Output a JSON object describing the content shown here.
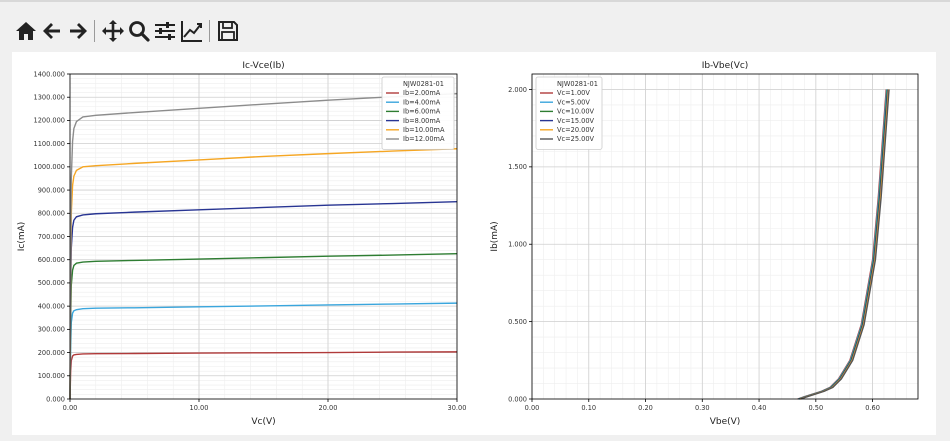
{
  "toolbar": {
    "buttons": [
      {
        "name": "home-icon"
      },
      {
        "name": "back-icon"
      },
      {
        "name": "forward-icon"
      },
      {
        "name": "pan-icon"
      },
      {
        "name": "zoom-icon"
      },
      {
        "name": "configure-subplots-icon"
      },
      {
        "name": "edit-axes-icon"
      },
      {
        "name": "save-icon"
      }
    ]
  },
  "chart_data": [
    {
      "type": "line",
      "title": "Ic-Vce(Ib)",
      "xlabel": "Vc(V)",
      "ylabel": "Ic(mA)",
      "xlim": [
        0,
        30
      ],
      "ylim": [
        0,
        1400
      ],
      "x_ticks": [
        0,
        10,
        20,
        30
      ],
      "x_tick_labels": [
        "0.00",
        "10.00",
        "20.00",
        "30.00"
      ],
      "y_ticks": [
        0,
        100,
        200,
        300,
        400,
        500,
        600,
        700,
        800,
        900,
        1000,
        1100,
        1200,
        1300,
        1400
      ],
      "y_tick_labels": [
        "0.000",
        "100.000",
        "200.000",
        "300.000",
        "400.000",
        "500.000",
        "600.000",
        "700.000",
        "800.000",
        "900.000",
        "1000.000",
        "1100.000",
        "1200.000",
        "1300.000",
        "1400.000"
      ],
      "grid": true,
      "legend": {
        "title": "NJW0281-01",
        "placement": "top-right"
      },
      "series": [
        {
          "name": "Ib=2.00mA",
          "color": "#b03a3a",
          "x": [
            0,
            0.05,
            0.1,
            0.2,
            0.3,
            0.5,
            1,
            2,
            5,
            10,
            15,
            20,
            25,
            30
          ],
          "y": [
            0,
            120,
            165,
            185,
            190,
            192,
            194,
            195,
            196,
            198,
            199,
            200,
            202,
            203
          ]
        },
        {
          "name": "Ib=4.00mA",
          "color": "#3aa6dd",
          "x": [
            0,
            0.05,
            0.1,
            0.2,
            0.3,
            0.5,
            1,
            2,
            5,
            10,
            15,
            20,
            25,
            30
          ],
          "y": [
            0,
            240,
            330,
            370,
            380,
            385,
            389,
            391,
            393,
            397,
            401,
            405,
            409,
            413
          ]
        },
        {
          "name": "Ib=6.00mA",
          "color": "#2e7d32",
          "x": [
            0,
            0.05,
            0.1,
            0.2,
            0.3,
            0.5,
            1,
            2,
            5,
            10,
            15,
            20,
            25,
            30
          ],
          "y": [
            0,
            350,
            490,
            555,
            575,
            585,
            590,
            593,
            597,
            603,
            609,
            615,
            620,
            626
          ]
        },
        {
          "name": "Ib=8.00mA",
          "color": "#283593",
          "x": [
            0,
            0.05,
            0.1,
            0.2,
            0.3,
            0.5,
            1,
            2,
            5,
            10,
            15,
            20,
            25,
            30
          ],
          "y": [
            0,
            460,
            650,
            740,
            770,
            785,
            793,
            798,
            805,
            815,
            825,
            835,
            842,
            850
          ]
        },
        {
          "name": "Ib=10.00mA",
          "color": "#f5a623",
          "x": [
            0,
            0.05,
            0.1,
            0.2,
            0.3,
            0.5,
            1,
            2,
            5,
            10,
            15,
            20,
            25,
            30
          ],
          "y": [
            0,
            560,
            800,
            920,
            960,
            985,
            1000,
            1005,
            1015,
            1030,
            1045,
            1057,
            1068,
            1078
          ]
        },
        {
          "name": "Ib=12.00mA",
          "color": "#8c8c8c",
          "x": [
            0,
            0.05,
            0.1,
            0.2,
            0.3,
            0.5,
            1,
            2,
            5,
            10,
            15,
            20,
            25,
            30
          ],
          "y": [
            0,
            650,
            950,
            1110,
            1165,
            1195,
            1215,
            1222,
            1234,
            1252,
            1270,
            1287,
            1302,
            1315
          ]
        }
      ]
    },
    {
      "type": "line",
      "title": "Ib-Vbe(Vc)",
      "xlabel": "Vbe(V)",
      "ylabel": "Ib(mA)",
      "xlim": [
        0,
        0.68
      ],
      "ylim": [
        0,
        2.1
      ],
      "x_ticks": [
        0,
        0.1,
        0.2,
        0.3,
        0.4,
        0.5,
        0.6
      ],
      "x_tick_labels": [
        "0.00",
        "0.10",
        "0.20",
        "0.30",
        "0.40",
        "0.50",
        "0.60"
      ],
      "y_ticks": [
        0,
        0.5,
        1.0,
        1.5,
        2.0
      ],
      "y_tick_labels": [
        "0.000",
        "0.500",
        "1.000",
        "1.500",
        "2.000"
      ],
      "grid": true,
      "legend": {
        "title": "NJW0281-01",
        "placement": "top-left"
      },
      "series": [
        {
          "name": "Vc=1.00V",
          "color": "#b03a3a",
          "x": [
            0.468,
            0.48,
            0.51,
            0.525,
            0.54,
            0.56,
            0.58,
            0.6,
            0.61,
            0.62,
            0.624
          ],
          "y": [
            0,
            0.015,
            0.05,
            0.075,
            0.13,
            0.25,
            0.48,
            0.9,
            1.3,
            1.8,
            2.0
          ]
        },
        {
          "name": "Vc=5.00V",
          "color": "#3aa6dd",
          "x": [
            0.469,
            0.481,
            0.511,
            0.526,
            0.541,
            0.561,
            0.581,
            0.601,
            0.611,
            0.621,
            0.625
          ],
          "y": [
            0,
            0.015,
            0.05,
            0.075,
            0.13,
            0.25,
            0.48,
            0.9,
            1.3,
            1.8,
            2.0
          ]
        },
        {
          "name": "Vc=10.00V",
          "color": "#2e7d32",
          "x": [
            0.47,
            0.482,
            0.512,
            0.527,
            0.542,
            0.562,
            0.582,
            0.602,
            0.612,
            0.622,
            0.626
          ],
          "y": [
            0,
            0.015,
            0.05,
            0.075,
            0.13,
            0.25,
            0.48,
            0.9,
            1.3,
            1.8,
            2.0
          ]
        },
        {
          "name": "Vc=15.00V",
          "color": "#283593",
          "x": [
            0.471,
            0.483,
            0.513,
            0.528,
            0.543,
            0.563,
            0.583,
            0.603,
            0.613,
            0.623,
            0.627
          ],
          "y": [
            0,
            0.015,
            0.05,
            0.075,
            0.13,
            0.25,
            0.48,
            0.9,
            1.3,
            1.8,
            2.0
          ]
        },
        {
          "name": "Vc=20.00V",
          "color": "#f5a623",
          "x": [
            0.472,
            0.484,
            0.514,
            0.529,
            0.544,
            0.564,
            0.584,
            0.604,
            0.614,
            0.624,
            0.628
          ],
          "y": [
            0,
            0.015,
            0.05,
            0.075,
            0.13,
            0.25,
            0.48,
            0.9,
            1.3,
            1.8,
            2.0
          ]
        },
        {
          "name": "Vc=25.00V",
          "color": "#555555",
          "x": [
            0.473,
            0.485,
            0.515,
            0.53,
            0.545,
            0.565,
            0.585,
            0.605,
            0.615,
            0.625,
            0.629
          ],
          "y": [
            0,
            0.015,
            0.05,
            0.075,
            0.13,
            0.25,
            0.48,
            0.9,
            1.3,
            1.8,
            2.0
          ]
        }
      ]
    }
  ]
}
